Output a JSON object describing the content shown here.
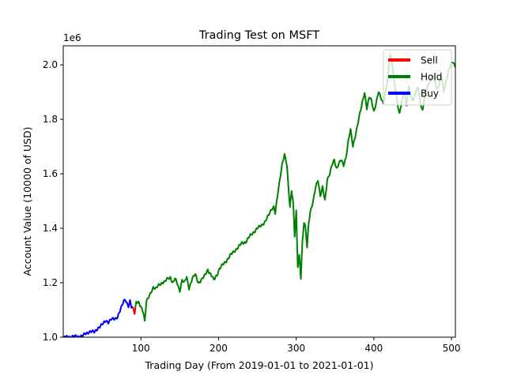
{
  "chart_data": {
    "type": "line",
    "title": "Trading Test on MSFT",
    "xlabel": "Trading Day (From 2019-01-01 to 2021-01-01)",
    "ylabel": "Account Value (10000 of USD)",
    "y_offset_text": "1e6",
    "xlim": [
      0,
      505
    ],
    "ylim": [
      1000000,
      2070000
    ],
    "x_ticks": [
      100,
      200,
      300,
      400,
      500
    ],
    "y_ticks": [
      1000000,
      1200000,
      1400000,
      1600000,
      1800000,
      2000000
    ],
    "y_tick_labels": [
      "1.0",
      "1.2",
      "1.4",
      "1.6",
      "1.8",
      "2.0"
    ],
    "grid": false,
    "legend_position": "top-right",
    "legend": [
      {
        "name": "Sell",
        "color": "#ff0000"
      },
      {
        "name": "Hold",
        "color": "#008000"
      },
      {
        "name": "Buy",
        "color": "#0000ff"
      }
    ],
    "keyframes": [
      [
        1,
        1000000
      ],
      [
        10,
        1002000
      ],
      [
        20,
        1003000
      ],
      [
        25,
        1005000
      ],
      [
        30,
        1015000
      ],
      [
        35,
        1022000
      ],
      [
        40,
        1018000
      ],
      [
        45,
        1035000
      ],
      [
        50,
        1045000
      ],
      [
        55,
        1062000
      ],
      [
        58,
        1055000
      ],
      [
        62,
        1065000
      ],
      [
        66,
        1068000
      ],
      [
        70,
        1075000
      ],
      [
        73,
        1095000
      ],
      [
        76,
        1118000
      ],
      [
        78,
        1135000
      ],
      [
        80,
        1140000
      ],
      [
        82,
        1125000
      ],
      [
        84,
        1112000
      ],
      [
        86,
        1130000
      ],
      [
        88,
        1110000
      ],
      [
        90,
        1108000
      ],
      [
        92,
        1090000
      ],
      [
        94,
        1130000
      ],
      [
        97,
        1125000
      ],
      [
        100,
        1110000
      ],
      [
        103,
        1095000
      ],
      [
        105,
        1060000
      ],
      [
        107,
        1130000
      ],
      [
        110,
        1145000
      ],
      [
        113,
        1165000
      ],
      [
        116,
        1185000
      ],
      [
        119,
        1178000
      ],
      [
        123,
        1190000
      ],
      [
        127,
        1200000
      ],
      [
        131,
        1205000
      ],
      [
        135,
        1215000
      ],
      [
        138,
        1220000
      ],
      [
        141,
        1200000
      ],
      [
        144,
        1215000
      ],
      [
        147,
        1195000
      ],
      [
        150,
        1170000
      ],
      [
        153,
        1210000
      ],
      [
        156,
        1200000
      ],
      [
        159,
        1220000
      ],
      [
        162,
        1180000
      ],
      [
        166,
        1215000
      ],
      [
        170,
        1230000
      ],
      [
        174,
        1200000
      ],
      [
        178,
        1210000
      ],
      [
        182,
        1225000
      ],
      [
        186,
        1248000
      ],
      [
        190,
        1230000
      ],
      [
        194,
        1210000
      ],
      [
        198,
        1230000
      ],
      [
        201,
        1250000
      ],
      [
        205,
        1265000
      ],
      [
        210,
        1280000
      ],
      [
        215,
        1300000
      ],
      [
        220,
        1315000
      ],
      [
        225,
        1330000
      ],
      [
        230,
        1345000
      ],
      [
        235,
        1350000
      ],
      [
        240,
        1370000
      ],
      [
        245,
        1385000
      ],
      [
        250,
        1400000
      ],
      [
        255,
        1410000
      ],
      [
        260,
        1425000
      ],
      [
        265,
        1450000
      ],
      [
        268,
        1470000
      ],
      [
        271,
        1480000
      ],
      [
        273,
        1455000
      ],
      [
        276,
        1520000
      ],
      [
        279,
        1580000
      ],
      [
        282,
        1640000
      ],
      [
        285,
        1670000
      ],
      [
        288,
        1630000
      ],
      [
        290,
        1550000
      ],
      [
        292,
        1480000
      ],
      [
        294,
        1540000
      ],
      [
        296,
        1500000
      ],
      [
        298,
        1370000
      ],
      [
        300,
        1460000
      ],
      [
        302,
        1260000
      ],
      [
        304,
        1300000
      ],
      [
        306,
        1220000
      ],
      [
        308,
        1350000
      ],
      [
        310,
        1420000
      ],
      [
        312,
        1400000
      ],
      [
        314,
        1330000
      ],
      [
        316,
        1420000
      ],
      [
        318,
        1460000
      ],
      [
        320,
        1480000
      ],
      [
        322,
        1500000
      ],
      [
        325,
        1550000
      ],
      [
        328,
        1580000
      ],
      [
        331,
        1520000
      ],
      [
        334,
        1550000
      ],
      [
        337,
        1500000
      ],
      [
        340,
        1580000
      ],
      [
        343,
        1600000
      ],
      [
        346,
        1630000
      ],
      [
        349,
        1650000
      ],
      [
        352,
        1620000
      ],
      [
        355,
        1640000
      ],
      [
        358,
        1650000
      ],
      [
        361,
        1630000
      ],
      [
        364,
        1660000
      ],
      [
        367,
        1720000
      ],
      [
        370,
        1760000
      ],
      [
        373,
        1700000
      ],
      [
        376,
        1740000
      ],
      [
        379,
        1780000
      ],
      [
        382,
        1820000
      ],
      [
        385,
        1860000
      ],
      [
        388,
        1900000
      ],
      [
        391,
        1840000
      ],
      [
        394,
        1880000
      ],
      [
        397,
        1870000
      ],
      [
        400,
        1830000
      ],
      [
        403,
        1860000
      ],
      [
        406,
        1900000
      ],
      [
        409,
        1880000
      ],
      [
        412,
        1860000
      ],
      [
        415,
        1900000
      ],
      [
        418,
        1950000
      ],
      [
        421,
        2040000
      ],
      [
        424,
        2000000
      ],
      [
        427,
        1920000
      ],
      [
        430,
        1860000
      ],
      [
        433,
        1820000
      ],
      [
        436,
        1870000
      ],
      [
        439,
        1900000
      ],
      [
        442,
        1850000
      ],
      [
        445,
        1920000
      ],
      [
        448,
        1880000
      ],
      [
        451,
        1870000
      ],
      [
        454,
        1900000
      ],
      [
        457,
        1920000
      ],
      [
        460,
        1860000
      ],
      [
        463,
        1830000
      ],
      [
        466,
        1900000
      ],
      [
        469,
        1920000
      ],
      [
        472,
        1940000
      ],
      [
        475,
        1960000
      ],
      [
        478,
        1950000
      ],
      [
        481,
        1910000
      ],
      [
        484,
        1930000
      ],
      [
        487,
        1960000
      ],
      [
        490,
        1900000
      ],
      [
        493,
        1940000
      ],
      [
        496,
        1980000
      ],
      [
        499,
        2000000
      ],
      [
        502,
        2010000
      ],
      [
        505,
        1990000
      ]
    ],
    "segments": [
      {
        "name": "Buy",
        "color": "#0000ff",
        "from": 1,
        "to": 90
      },
      {
        "name": "Sell",
        "color": "#ff0000",
        "from": 90,
        "to": 93
      },
      {
        "name": "Hold",
        "color": "#008000",
        "from": 93,
        "to": 505
      }
    ]
  }
}
